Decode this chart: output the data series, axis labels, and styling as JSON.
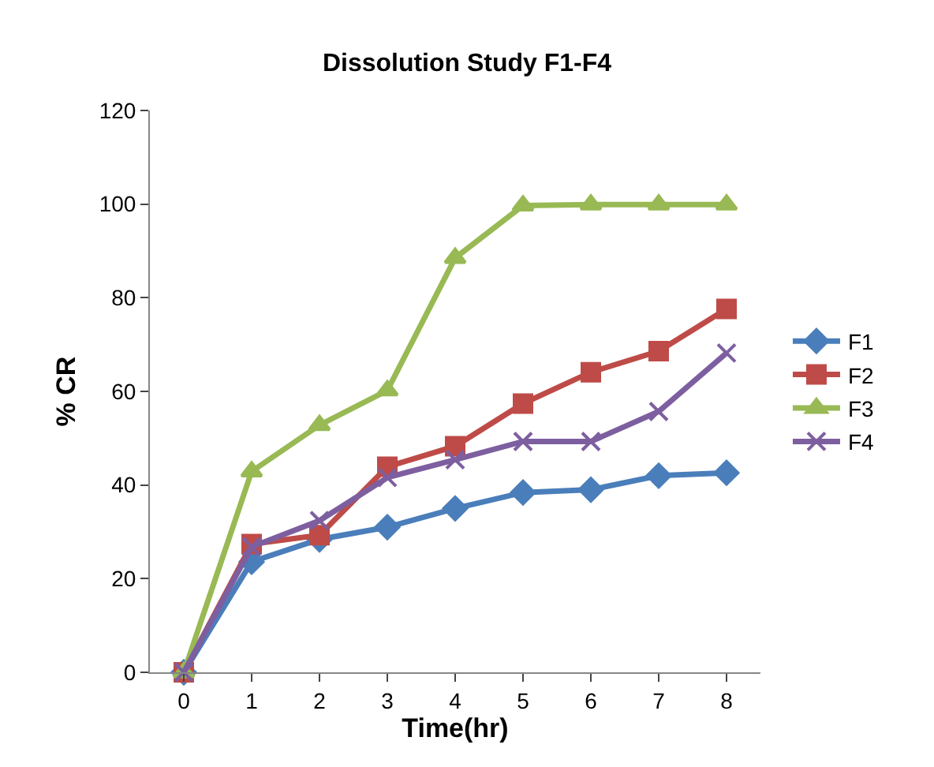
{
  "chart_data": {
    "type": "line",
    "title": "Dissolution Study F1-F4",
    "xlabel": "Time(hr)",
    "ylabel": "% CR",
    "categories": [
      "0",
      "1",
      "2",
      "3",
      "4",
      "5",
      "6",
      "7",
      "8"
    ],
    "series": [
      {
        "name": "F1",
        "color": "#4a7ebb",
        "marker": "diamond",
        "values": [
          0,
          23.6,
          28.4,
          31,
          35,
          38.4,
          39,
          42,
          42.6
        ]
      },
      {
        "name": "F2",
        "color": "#be4b48",
        "marker": "square",
        "values": [
          0,
          27.4,
          29.3,
          43.9,
          48.3,
          57.4,
          64.1,
          68.6,
          77.6
        ]
      },
      {
        "name": "F3",
        "color": "#98b954",
        "marker": "triangle",
        "values": [
          0,
          42.9,
          52.8,
          60.2,
          88.5,
          99.7,
          99.9,
          99.9,
          99.9
        ]
      },
      {
        "name": "F4",
        "color": "#7d5fa0",
        "marker": "cross",
        "values": [
          0,
          26.8,
          32.4,
          41.6,
          45.4,
          49.3,
          49.3,
          55.7,
          68.2
        ]
      }
    ],
    "ylim": [
      0,
      120
    ],
    "yticks": [
      0,
      20,
      40,
      60,
      80,
      100,
      120
    ],
    "legend": "right",
    "line_style": "solid"
  }
}
